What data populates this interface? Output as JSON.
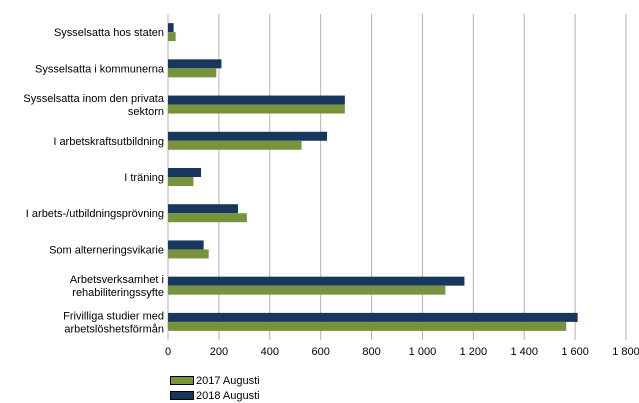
{
  "chart_data": {
    "type": "bar",
    "orientation": "horizontal",
    "categories": [
      [
        "Sysselsatta hos staten"
      ],
      [
        "Sysselsatta i kommunerna"
      ],
      [
        "Sysselsatta inom den privata",
        "sektorn"
      ],
      [
        "I arbetskraftsutbildning"
      ],
      [
        "I träning"
      ],
      [
        "I arbets-/utbildningsprövning"
      ],
      [
        "Som alterneringsvikarie"
      ],
      [
        "Arbetsverksamhet i",
        "rehabiliteringssyfte"
      ],
      [
        "Frivilliga studier med",
        "arbetslöshetsförmån"
      ]
    ],
    "series": [
      {
        "name": "2017 Augusti",
        "color": "#77933c",
        "values": [
          30,
          190,
          695,
          525,
          100,
          310,
          160,
          1090,
          1565
        ]
      },
      {
        "name": "2018 Augusti",
        "color": "#17375e",
        "values": [
          22,
          210,
          695,
          625,
          130,
          275,
          140,
          1165,
          1610
        ]
      }
    ],
    "xlim": [
      0,
      1800
    ],
    "xticks": [
      0,
      200,
      400,
      600,
      800,
      1000,
      1200,
      1400,
      1600,
      1800
    ],
    "xtick_labels": [
      "0",
      "200",
      "400",
      "600",
      "800",
      "1 000",
      "1 200",
      "1 400",
      "1 600",
      "1 800"
    ],
    "grid": true,
    "legend_position": "bottom"
  }
}
